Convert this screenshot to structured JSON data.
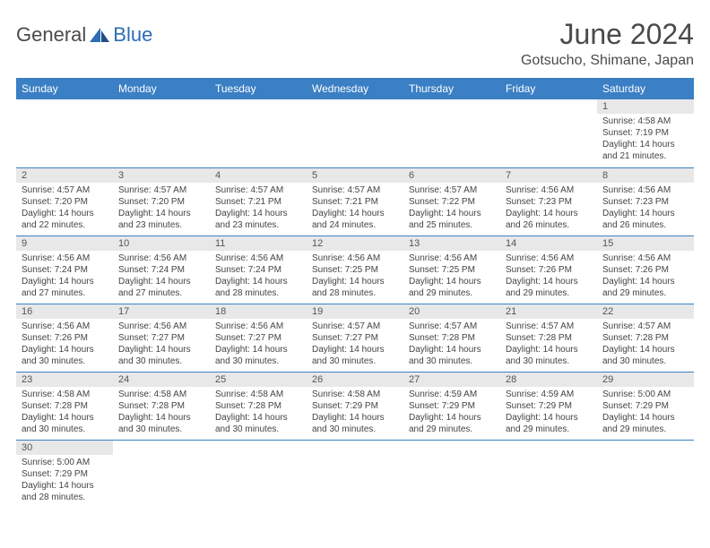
{
  "logo": {
    "part1": "General",
    "part2": "Blue"
  },
  "title": "June 2024",
  "location": "Gotsucho, Shimane, Japan",
  "colors": {
    "header_bg": "#3b7fc4",
    "header_text": "#ffffff",
    "daynum_bg": "#e8e8e8",
    "border": "#3b7fc4",
    "body_text": "#444444"
  },
  "weekdays": [
    "Sunday",
    "Monday",
    "Tuesday",
    "Wednesday",
    "Thursday",
    "Friday",
    "Saturday"
  ],
  "weeks": [
    [
      null,
      null,
      null,
      null,
      null,
      null,
      {
        "n": "1",
        "sr": "Sunrise: 4:58 AM",
        "ss": "Sunset: 7:19 PM",
        "dl": "Daylight: 14 hours and 21 minutes."
      }
    ],
    [
      {
        "n": "2",
        "sr": "Sunrise: 4:57 AM",
        "ss": "Sunset: 7:20 PM",
        "dl": "Daylight: 14 hours and 22 minutes."
      },
      {
        "n": "3",
        "sr": "Sunrise: 4:57 AM",
        "ss": "Sunset: 7:20 PM",
        "dl": "Daylight: 14 hours and 23 minutes."
      },
      {
        "n": "4",
        "sr": "Sunrise: 4:57 AM",
        "ss": "Sunset: 7:21 PM",
        "dl": "Daylight: 14 hours and 23 minutes."
      },
      {
        "n": "5",
        "sr": "Sunrise: 4:57 AM",
        "ss": "Sunset: 7:21 PM",
        "dl": "Daylight: 14 hours and 24 minutes."
      },
      {
        "n": "6",
        "sr": "Sunrise: 4:57 AM",
        "ss": "Sunset: 7:22 PM",
        "dl": "Daylight: 14 hours and 25 minutes."
      },
      {
        "n": "7",
        "sr": "Sunrise: 4:56 AM",
        "ss": "Sunset: 7:23 PM",
        "dl": "Daylight: 14 hours and 26 minutes."
      },
      {
        "n": "8",
        "sr": "Sunrise: 4:56 AM",
        "ss": "Sunset: 7:23 PM",
        "dl": "Daylight: 14 hours and 26 minutes."
      }
    ],
    [
      {
        "n": "9",
        "sr": "Sunrise: 4:56 AM",
        "ss": "Sunset: 7:24 PM",
        "dl": "Daylight: 14 hours and 27 minutes."
      },
      {
        "n": "10",
        "sr": "Sunrise: 4:56 AM",
        "ss": "Sunset: 7:24 PM",
        "dl": "Daylight: 14 hours and 27 minutes."
      },
      {
        "n": "11",
        "sr": "Sunrise: 4:56 AM",
        "ss": "Sunset: 7:24 PM",
        "dl": "Daylight: 14 hours and 28 minutes."
      },
      {
        "n": "12",
        "sr": "Sunrise: 4:56 AM",
        "ss": "Sunset: 7:25 PM",
        "dl": "Daylight: 14 hours and 28 minutes."
      },
      {
        "n": "13",
        "sr": "Sunrise: 4:56 AM",
        "ss": "Sunset: 7:25 PM",
        "dl": "Daylight: 14 hours and 29 minutes."
      },
      {
        "n": "14",
        "sr": "Sunrise: 4:56 AM",
        "ss": "Sunset: 7:26 PM",
        "dl": "Daylight: 14 hours and 29 minutes."
      },
      {
        "n": "15",
        "sr": "Sunrise: 4:56 AM",
        "ss": "Sunset: 7:26 PM",
        "dl": "Daylight: 14 hours and 29 minutes."
      }
    ],
    [
      {
        "n": "16",
        "sr": "Sunrise: 4:56 AM",
        "ss": "Sunset: 7:26 PM",
        "dl": "Daylight: 14 hours and 30 minutes."
      },
      {
        "n": "17",
        "sr": "Sunrise: 4:56 AM",
        "ss": "Sunset: 7:27 PM",
        "dl": "Daylight: 14 hours and 30 minutes."
      },
      {
        "n": "18",
        "sr": "Sunrise: 4:56 AM",
        "ss": "Sunset: 7:27 PM",
        "dl": "Daylight: 14 hours and 30 minutes."
      },
      {
        "n": "19",
        "sr": "Sunrise: 4:57 AM",
        "ss": "Sunset: 7:27 PM",
        "dl": "Daylight: 14 hours and 30 minutes."
      },
      {
        "n": "20",
        "sr": "Sunrise: 4:57 AM",
        "ss": "Sunset: 7:28 PM",
        "dl": "Daylight: 14 hours and 30 minutes."
      },
      {
        "n": "21",
        "sr": "Sunrise: 4:57 AM",
        "ss": "Sunset: 7:28 PM",
        "dl": "Daylight: 14 hours and 30 minutes."
      },
      {
        "n": "22",
        "sr": "Sunrise: 4:57 AM",
        "ss": "Sunset: 7:28 PM",
        "dl": "Daylight: 14 hours and 30 minutes."
      }
    ],
    [
      {
        "n": "23",
        "sr": "Sunrise: 4:58 AM",
        "ss": "Sunset: 7:28 PM",
        "dl": "Daylight: 14 hours and 30 minutes."
      },
      {
        "n": "24",
        "sr": "Sunrise: 4:58 AM",
        "ss": "Sunset: 7:28 PM",
        "dl": "Daylight: 14 hours and 30 minutes."
      },
      {
        "n": "25",
        "sr": "Sunrise: 4:58 AM",
        "ss": "Sunset: 7:28 PM",
        "dl": "Daylight: 14 hours and 30 minutes."
      },
      {
        "n": "26",
        "sr": "Sunrise: 4:58 AM",
        "ss": "Sunset: 7:29 PM",
        "dl": "Daylight: 14 hours and 30 minutes."
      },
      {
        "n": "27",
        "sr": "Sunrise: 4:59 AM",
        "ss": "Sunset: 7:29 PM",
        "dl": "Daylight: 14 hours and 29 minutes."
      },
      {
        "n": "28",
        "sr": "Sunrise: 4:59 AM",
        "ss": "Sunset: 7:29 PM",
        "dl": "Daylight: 14 hours and 29 minutes."
      },
      {
        "n": "29",
        "sr": "Sunrise: 5:00 AM",
        "ss": "Sunset: 7:29 PM",
        "dl": "Daylight: 14 hours and 29 minutes."
      }
    ],
    [
      {
        "n": "30",
        "sr": "Sunrise: 5:00 AM",
        "ss": "Sunset: 7:29 PM",
        "dl": "Daylight: 14 hours and 28 minutes."
      },
      null,
      null,
      null,
      null,
      null,
      null
    ]
  ]
}
